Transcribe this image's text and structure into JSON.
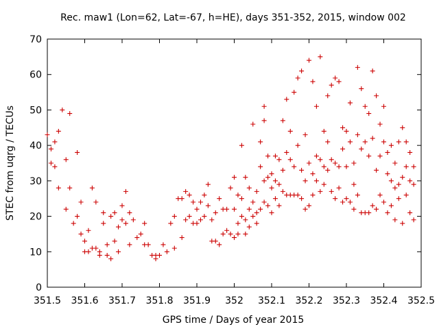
{
  "chart_data": {
    "type": "scatter",
    "title": "Rec. maw1 (Lon=62, Lat=-67, h=HE), days 351-352, 2015, window 002",
    "xlabel": "GPS time / Days of year 2015",
    "ylabel": "STEC from uqrg / TECUs",
    "xlim": [
      351.5,
      352.5
    ],
    "ylim": [
      0,
      70
    ],
    "x_ticks": [
      "351.5",
      "351.6",
      "351.7",
      "351.8",
      "351.9",
      "352",
      "352.1",
      "352.2",
      "352.3",
      "352.4",
      "352.5"
    ],
    "y_ticks": [
      "0",
      "10",
      "20",
      "30",
      "40",
      "50",
      "60",
      "70"
    ],
    "marker": "+",
    "series": [
      {
        "name": "STEC",
        "color": "#cc0000",
        "points": [
          [
            351.5,
            43
          ],
          [
            351.51,
            39
          ],
          [
            351.52,
            41
          ],
          [
            351.51,
            35
          ],
          [
            351.52,
            34
          ],
          [
            351.53,
            44
          ],
          [
            351.53,
            28
          ],
          [
            351.54,
            50
          ],
          [
            351.55,
            36
          ],
          [
            351.55,
            22
          ],
          [
            351.56,
            49
          ],
          [
            351.56,
            28
          ],
          [
            351.57,
            18
          ],
          [
            351.58,
            38
          ],
          [
            351.58,
            20
          ],
          [
            351.59,
            15
          ],
          [
            351.59,
            24
          ],
          [
            351.6,
            10
          ],
          [
            351.6,
            13
          ],
          [
            351.61,
            10
          ],
          [
            351.61,
            16
          ],
          [
            351.62,
            28
          ],
          [
            351.62,
            11
          ],
          [
            351.63,
            11
          ],
          [
            351.63,
            24
          ],
          [
            351.64,
            10
          ],
          [
            351.64,
            9
          ],
          [
            351.65,
            18
          ],
          [
            351.65,
            21
          ],
          [
            351.66,
            12
          ],
          [
            351.66,
            9
          ],
          [
            351.67,
            20
          ],
          [
            351.67,
            8
          ],
          [
            351.68,
            21
          ],
          [
            351.68,
            13
          ],
          [
            351.69,
            10
          ],
          [
            351.69,
            17
          ],
          [
            351.7,
            23
          ],
          [
            351.7,
            19
          ],
          [
            351.71,
            27
          ],
          [
            351.71,
            18
          ],
          [
            351.72,
            12
          ],
          [
            351.72,
            21
          ],
          [
            351.73,
            19
          ],
          [
            351.74,
            14
          ],
          [
            351.75,
            15
          ],
          [
            351.76,
            12
          ],
          [
            351.76,
            18
          ],
          [
            351.77,
            12
          ],
          [
            351.78,
            9
          ],
          [
            351.79,
            9
          ],
          [
            351.79,
            8
          ],
          [
            351.8,
            9
          ],
          [
            351.81,
            12
          ],
          [
            351.82,
            10
          ],
          [
            351.83,
            18
          ],
          [
            351.84,
            11
          ],
          [
            351.84,
            20
          ],
          [
            351.85,
            25
          ],
          [
            351.86,
            14
          ],
          [
            351.86,
            25
          ],
          [
            351.87,
            19
          ],
          [
            351.87,
            27
          ],
          [
            351.88,
            20
          ],
          [
            351.88,
            26
          ],
          [
            351.89,
            18
          ],
          [
            351.89,
            24
          ],
          [
            351.9,
            18
          ],
          [
            351.9,
            22
          ],
          [
            351.91,
            24
          ],
          [
            351.91,
            19
          ],
          [
            351.92,
            26
          ],
          [
            351.92,
            20
          ],
          [
            351.93,
            29
          ],
          [
            351.93,
            23
          ],
          [
            351.94,
            13
          ],
          [
            351.94,
            19
          ],
          [
            351.95,
            13
          ],
          [
            351.95,
            21
          ],
          [
            351.96,
            25
          ],
          [
            351.96,
            12
          ],
          [
            351.97,
            15
          ],
          [
            351.97,
            22
          ],
          [
            351.98,
            16
          ],
          [
            351.98,
            22
          ],
          [
            351.99,
            28
          ],
          [
            351.99,
            15
          ],
          [
            352.0,
            31
          ],
          [
            352.0,
            22
          ],
          [
            352.0,
            14
          ],
          [
            352.01,
            26
          ],
          [
            352.01,
            18
          ],
          [
            352.01,
            15
          ],
          [
            352.02,
            40
          ],
          [
            352.02,
            25
          ],
          [
            352.02,
            20
          ],
          [
            352.03,
            19
          ],
          [
            352.03,
            31
          ],
          [
            352.03,
            15
          ],
          [
            352.04,
            22
          ],
          [
            352.04,
            28
          ],
          [
            352.04,
            17
          ],
          [
            352.05,
            46
          ],
          [
            352.05,
            24
          ],
          [
            352.05,
            20
          ],
          [
            352.06,
            27
          ],
          [
            352.06,
            21
          ],
          [
            352.06,
            18
          ],
          [
            352.07,
            34
          ],
          [
            352.07,
            41
          ],
          [
            352.07,
            22
          ],
          [
            352.08,
            51
          ],
          [
            352.08,
            47
          ],
          [
            352.08,
            30
          ],
          [
            352.08,
            24
          ],
          [
            352.09,
            37
          ],
          [
            352.09,
            31
          ],
          [
            352.09,
            23
          ],
          [
            352.1,
            32
          ],
          [
            352.1,
            28
          ],
          [
            352.1,
            21
          ],
          [
            352.11,
            37
          ],
          [
            352.11,
            30
          ],
          [
            352.11,
            25
          ],
          [
            352.12,
            36
          ],
          [
            352.12,
            29
          ],
          [
            352.12,
            23
          ],
          [
            352.13,
            47
          ],
          [
            352.13,
            33
          ],
          [
            352.13,
            27
          ],
          [
            352.14,
            53
          ],
          [
            352.14,
            38
          ],
          [
            352.14,
            26
          ],
          [
            352.15,
            44
          ],
          [
            352.15,
            36
          ],
          [
            352.15,
            26
          ],
          [
            352.16,
            55
          ],
          [
            352.16,
            34
          ],
          [
            352.16,
            26
          ],
          [
            352.17,
            59
          ],
          [
            352.17,
            40
          ],
          [
            352.17,
            26
          ],
          [
            352.18,
            61
          ],
          [
            352.18,
            33
          ],
          [
            352.18,
            25
          ],
          [
            352.19,
            43
          ],
          [
            352.19,
            30
          ],
          [
            352.19,
            22
          ],
          [
            352.2,
            64
          ],
          [
            352.2,
            35
          ],
          [
            352.2,
            23
          ],
          [
            352.21,
            58
          ],
          [
            352.21,
            32
          ],
          [
            352.21,
            26
          ],
          [
            352.22,
            51
          ],
          [
            352.22,
            37
          ],
          [
            352.22,
            30
          ],
          [
            352.23,
            65
          ],
          [
            352.23,
            36
          ],
          [
            352.23,
            27
          ],
          [
            352.24,
            44
          ],
          [
            352.24,
            34
          ],
          [
            352.24,
            29
          ],
          [
            352.25,
            54
          ],
          [
            352.25,
            41
          ],
          [
            352.25,
            33
          ],
          [
            352.26,
            57
          ],
          [
            352.26,
            36
          ],
          [
            352.26,
            27
          ],
          [
            352.27,
            59
          ],
          [
            352.27,
            35
          ],
          [
            352.27,
            25
          ],
          [
            352.28,
            58
          ],
          [
            352.28,
            34
          ],
          [
            352.28,
            28
          ],
          [
            352.29,
            45
          ],
          [
            352.29,
            39
          ],
          [
            352.29,
            24
          ],
          [
            352.3,
            44
          ],
          [
            352.3,
            34
          ],
          [
            352.3,
            25
          ],
          [
            352.31,
            52
          ],
          [
            352.31,
            41
          ],
          [
            352.31,
            24
          ],
          [
            352.32,
            35
          ],
          [
            352.32,
            29
          ],
          [
            352.32,
            22
          ],
          [
            352.33,
            62
          ],
          [
            352.33,
            43
          ],
          [
            352.33,
            26
          ],
          [
            352.34,
            56
          ],
          [
            352.34,
            39
          ],
          [
            352.34,
            21
          ],
          [
            352.35,
            51
          ],
          [
            352.35,
            41
          ],
          [
            352.35,
            21
          ],
          [
            352.36,
            49
          ],
          [
            352.36,
            37
          ],
          [
            352.36,
            21
          ],
          [
            352.37,
            61
          ],
          [
            352.37,
            42
          ],
          [
            352.37,
            23
          ],
          [
            352.38,
            54
          ],
          [
            352.38,
            33
          ],
          [
            352.38,
            22
          ],
          [
            352.39,
            46
          ],
          [
            352.39,
            37
          ],
          [
            352.39,
            26
          ],
          [
            352.4,
            51
          ],
          [
            352.4,
            41
          ],
          [
            352.4,
            24
          ],
          [
            352.41,
            38
          ],
          [
            352.41,
            32
          ],
          [
            352.41,
            21
          ],
          [
            352.42,
            40
          ],
          [
            352.42,
            30
          ],
          [
            352.42,
            23
          ],
          [
            352.43,
            35
          ],
          [
            352.43,
            28
          ],
          [
            352.43,
            19
          ],
          [
            352.44,
            41
          ],
          [
            352.44,
            29
          ],
          [
            352.44,
            25
          ],
          [
            352.45,
            45
          ],
          [
            352.45,
            31
          ],
          [
            352.45,
            18
          ],
          [
            352.46,
            41
          ],
          [
            352.46,
            34
          ],
          [
            352.46,
            26
          ],
          [
            352.47,
            38
          ],
          [
            352.47,
            30
          ],
          [
            352.47,
            21
          ],
          [
            352.48,
            34
          ],
          [
            352.48,
            29
          ],
          [
            352.48,
            19
          ]
        ]
      }
    ]
  }
}
